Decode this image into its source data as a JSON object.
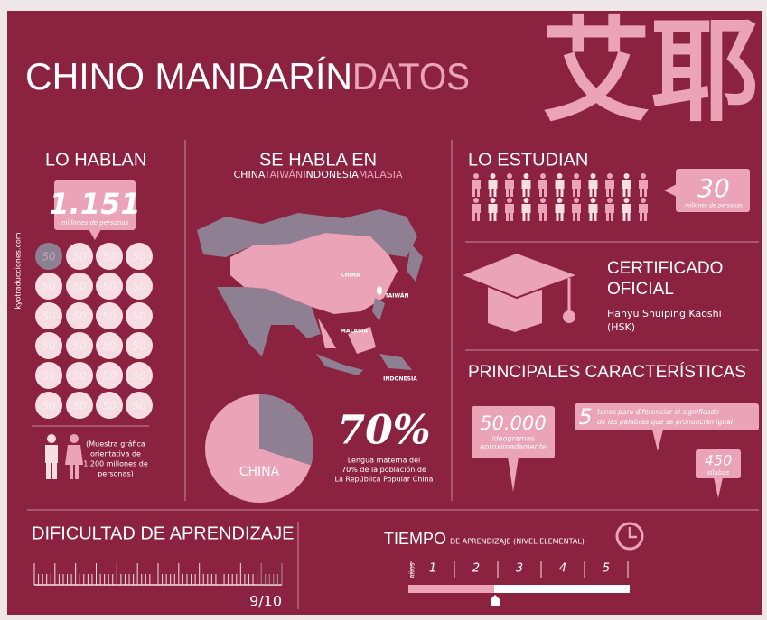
{
  "header": {
    "title": "CHINO MANDARÍN",
    "title_accent": "DATOS",
    "chinese": "艾耶"
  },
  "side_credit": "kyotraducciones.com",
  "speakers": {
    "heading": "LO HABLAN",
    "total": "1.151",
    "unit": "millones de personas",
    "circle_label": "50",
    "note": [
      "(Muestra gráfica",
      "orientativa de",
      "1.200 millones de",
      "personas)"
    ]
  },
  "spoken_in": {
    "heading": "SE HABLA EN",
    "countries": [
      "CHINA",
      "TAIWÁN",
      "INDONESIA",
      "MALASIA"
    ],
    "map_labels": [
      "CHINA",
      "TAIWÁN",
      "MALASIA",
      "INDONESIA"
    ],
    "pie_label": "CHINA",
    "percent": "70%",
    "note": [
      "Lengua materna del",
      "70% de la población de",
      "La República Popular China"
    ]
  },
  "students": {
    "heading": "LO ESTUDIAN",
    "total": "30",
    "unit": "millones de personas"
  },
  "certificate": {
    "title": [
      "CERTIFICADO",
      "OFICIAL"
    ],
    "name": [
      "Hanyu Shuiping Kaoshi",
      "(HSK)"
    ]
  },
  "features": {
    "heading": "PRINCIPALES CARACTERÍSTICAS",
    "items": [
      {
        "value": "50.000",
        "text": [
          "ideogramas",
          "aproximadamente"
        ]
      },
      {
        "value": "5",
        "text": [
          "tonos para diferenciar el significado",
          "de las palabras que se pronuncian igual"
        ]
      },
      {
        "value": "450",
        "text": [
          "sílabas"
        ]
      }
    ]
  },
  "difficulty": {
    "heading": "DIFICULTAD DE APRENDIZAJE",
    "score": "9/10"
  },
  "time": {
    "heading": "TIEMPO",
    "subheading": "DE APRENDIZAJE (NIVEL ELEMENTAL)",
    "axis_label": "AÑOS",
    "years": [
      1,
      2,
      3,
      4,
      5
    ]
  }
}
